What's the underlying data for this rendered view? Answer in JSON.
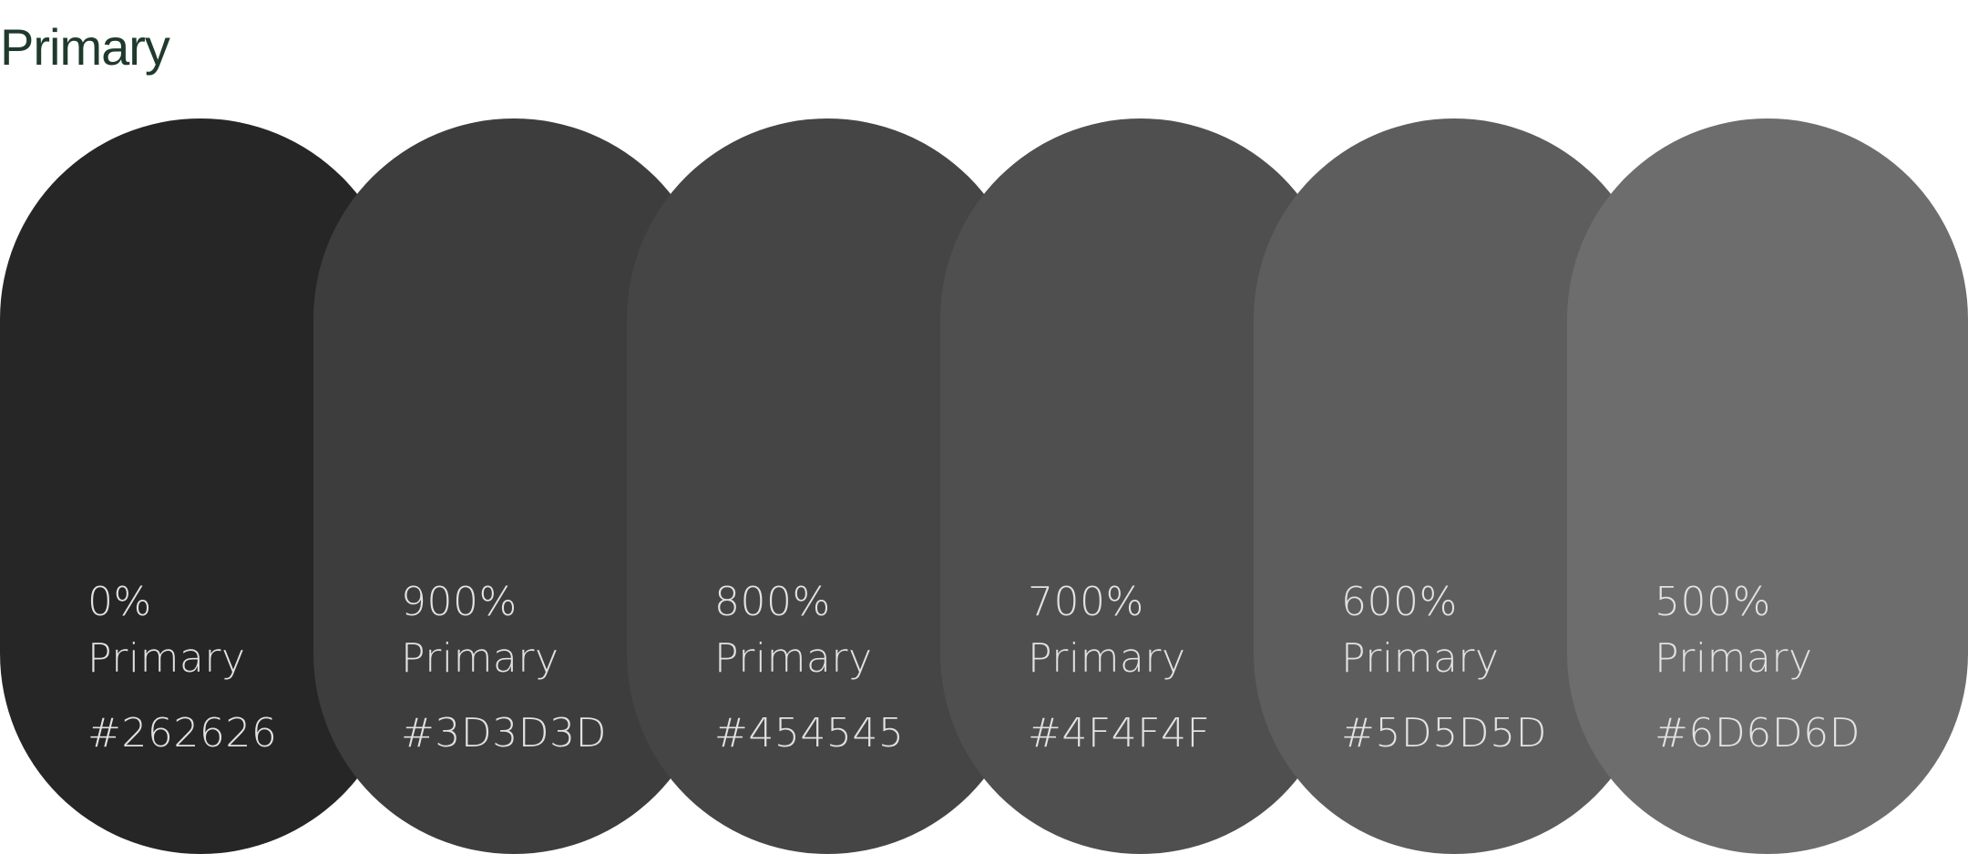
{
  "page": {
    "title": "Primary"
  },
  "swatches": [
    {
      "percent": "0%",
      "name": "Primary",
      "hex": "#262626",
      "color": "#262626"
    },
    {
      "percent": "900%",
      "name": "Primary",
      "hex": "#3D3D3D",
      "color": "#3D3D3D"
    },
    {
      "percent": "800%",
      "name": "Primary",
      "hex": "#454545",
      "color": "#454545"
    },
    {
      "percent": "700%",
      "name": "Primary",
      "hex": "#4F4F4F",
      "color": "#4F4F4F"
    },
    {
      "percent": "600%",
      "name": "Primary",
      "hex": "#5D5D5D",
      "color": "#5D5D5D"
    },
    {
      "percent": "500%",
      "name": "Primary",
      "hex": "#6D6D6D",
      "color": "#6D6D6D"
    }
  ]
}
